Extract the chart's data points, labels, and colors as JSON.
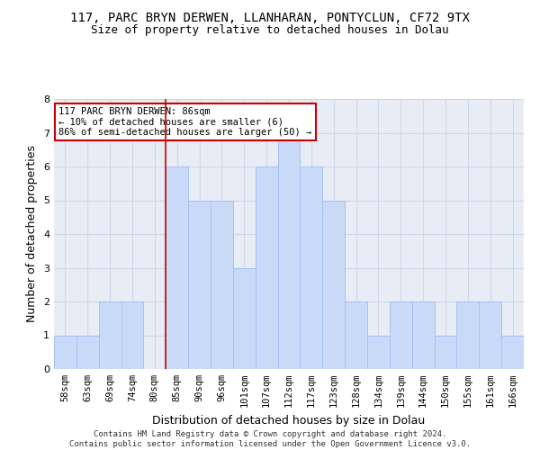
{
  "title1": "117, PARC BRYN DERWEN, LLANHARAN, PONTYCLUN, CF72 9TX",
  "title2": "Size of property relative to detached houses in Dolau",
  "xlabel": "Distribution of detached houses by size in Dolau",
  "ylabel": "Number of detached properties",
  "categories": [
    "58sqm",
    "63sqm",
    "69sqm",
    "74sqm",
    "80sqm",
    "85sqm",
    "90sqm",
    "96sqm",
    "101sqm",
    "107sqm",
    "112sqm",
    "117sqm",
    "123sqm",
    "128sqm",
    "134sqm",
    "139sqm",
    "144sqm",
    "150sqm",
    "155sqm",
    "161sqm",
    "166sqm"
  ],
  "values": [
    1,
    1,
    2,
    2,
    0,
    6,
    5,
    5,
    3,
    6,
    7,
    6,
    5,
    2,
    1,
    2,
    2,
    1,
    2,
    2,
    1
  ],
  "bar_color": "#c9daf8",
  "bar_edge_color": "#a4c2f4",
  "red_line_color": "#cc0000",
  "annotation_text": "117 PARC BRYN DERWEN: 86sqm\n← 10% of detached houses are smaller (6)\n86% of semi-detached houses are larger (50) →",
  "annotation_box_color": "#ffffff",
  "annotation_box_edge": "#cc0000",
  "ylim": [
    0,
    8
  ],
  "yticks": [
    0,
    1,
    2,
    3,
    4,
    5,
    6,
    7,
    8
  ],
  "grid_color": "#d0d8e8",
  "background_color": "#e8edf5",
  "footer": "Contains HM Land Registry data © Crown copyright and database right 2024.\nContains public sector information licensed under the Open Government Licence v3.0.",
  "title_fontsize": 10,
  "subtitle_fontsize": 9,
  "axis_label_fontsize": 9,
  "tick_fontsize": 7.5,
  "footer_fontsize": 6.5,
  "red_line_x": 4.5
}
